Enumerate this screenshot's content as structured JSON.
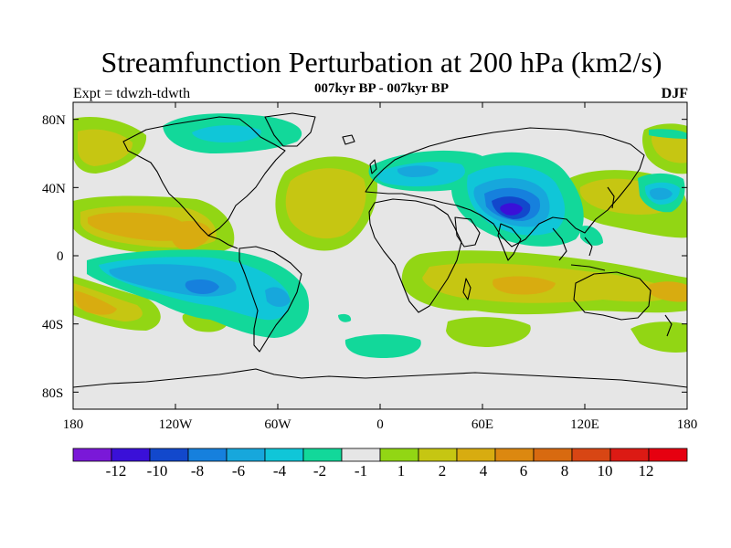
{
  "title": "Streamfunction Perturbation at 200 hPa (km2/s)",
  "subtitle": "007kyr BP - 007kyr BP",
  "left_label": "Expt = tdwzh-tdwth",
  "right_label": "DJF",
  "axes": {
    "lat_ticks": [
      {
        "v": 80,
        "label": "80N"
      },
      {
        "v": 40,
        "label": "40N"
      },
      {
        "v": 0,
        "label": "0"
      },
      {
        "v": -40,
        "label": "40S"
      },
      {
        "v": -80,
        "label": "80S"
      }
    ],
    "lon_ticks": [
      {
        "v": -180,
        "label": "180"
      },
      {
        "v": -120,
        "label": "120W"
      },
      {
        "v": -60,
        "label": "60W"
      },
      {
        "v": 0,
        "label": "0"
      },
      {
        "v": 60,
        "label": "60E"
      },
      {
        "v": 120,
        "label": "120E"
      },
      {
        "v": 180,
        "label": "180"
      }
    ],
    "lon_range": [
      -180,
      180
    ],
    "lat_range": [
      -90,
      90
    ]
  },
  "colorbar": {
    "colors": [
      "#7a18d8",
      "#3a10d8",
      "#1248cc",
      "#1680dd",
      "#17a7dc",
      "#10c6d8",
      "#12d89a",
      "#e6e6e6",
      "#92d614",
      "#c6c612",
      "#d8ac10",
      "#dc8810",
      "#d86a10",
      "#d84614",
      "#dc1a14",
      "#e60010"
    ],
    "labels": [
      "-12",
      "-10",
      "-8",
      "-6",
      "-4",
      "-2",
      "-1",
      "1",
      "2",
      "4",
      "6",
      "8",
      "10",
      "12"
    ]
  },
  "field_colors": {
    "ocean": "#e6e6e6",
    "pos1": "#92d614",
    "pos2": "#c6c612",
    "pos3": "#d8ac10",
    "neg1": "#12d89a",
    "neg2": "#10c6d8",
    "neg3": "#17a7dc",
    "neg4": "#1680dd",
    "neg5": "#1248cc",
    "neg6": "#3a10d8"
  }
}
